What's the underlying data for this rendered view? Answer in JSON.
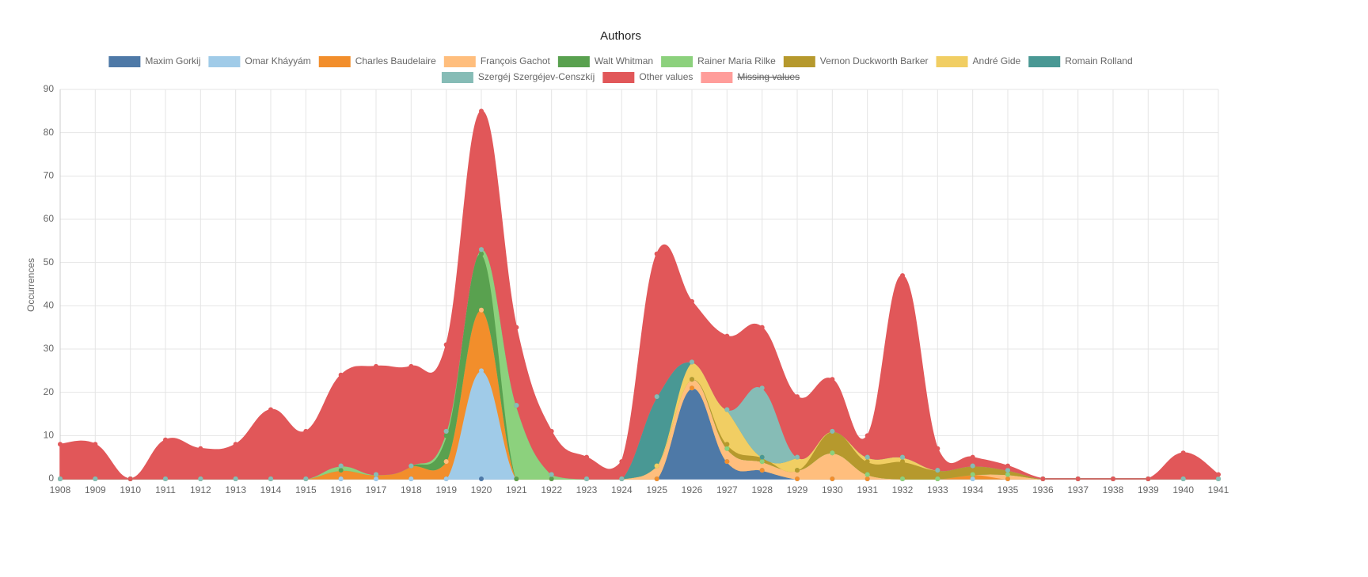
{
  "chart_data": {
    "type": "stacked-area",
    "title": "Authors",
    "y_label": "Occurrences",
    "categories": [
      "1908",
      "1909",
      "1910",
      "1911",
      "1912",
      "1913",
      "1914",
      "1915",
      "1916",
      "1917",
      "1918",
      "1919",
      "1920",
      "1921",
      "1922",
      "1923",
      "1924",
      "1925",
      "1926",
      "1927",
      "1928",
      "1929",
      "1930",
      "1931",
      "1932",
      "1933",
      "1934",
      "1935",
      "1936",
      "1937",
      "1938",
      "1939",
      "1940",
      "1941"
    ],
    "ylim": [
      0,
      90
    ],
    "yticks": [
      0,
      10,
      20,
      30,
      40,
      50,
      60,
      70,
      80,
      90
    ],
    "grid": true,
    "legend": "top",
    "series": [
      {
        "name": "Maxim Gorkij",
        "color": "#4e79a7",
        "values": [
          0,
          0,
          0,
          0,
          0,
          0,
          0,
          0,
          0,
          0,
          0,
          0,
          0,
          0,
          0,
          0,
          0,
          0,
          21,
          4,
          2,
          0,
          0,
          0,
          0,
          0,
          0,
          0,
          0,
          0,
          0,
          0,
          0,
          0
        ]
      },
      {
        "name": "Omar Kháyyám",
        "color": "#a0cbe8",
        "values": [
          0,
          0,
          0,
          0,
          0,
          0,
          0,
          0,
          0,
          0,
          0,
          0,
          25,
          0,
          0,
          0,
          0,
          0,
          0,
          0,
          0,
          0,
          0,
          0,
          0,
          0,
          0,
          0,
          0,
          0,
          0,
          0,
          0,
          0
        ]
      },
      {
        "name": "Charles Baudelaire",
        "color": "#f28e2b",
        "values": [
          0,
          0,
          0,
          0,
          0,
          0,
          0,
          0,
          2,
          1,
          3,
          4,
          14,
          0,
          0,
          0,
          0,
          0,
          0,
          0,
          0,
          0,
          0,
          0,
          0,
          0,
          1,
          0,
          0,
          0,
          0,
          0,
          0,
          0
        ]
      },
      {
        "name": "François Gachot",
        "color": "#ffbe7d",
        "values": [
          0,
          0,
          0,
          0,
          0,
          0,
          0,
          0,
          0,
          0,
          0,
          0,
          0,
          0,
          0,
          0,
          0,
          3,
          2,
          3,
          2,
          2,
          6,
          1,
          0,
          0,
          0,
          1,
          0,
          0,
          0,
          0,
          0,
          0
        ]
      },
      {
        "name": "Walt Whitman",
        "color": "#59a14f",
        "values": [
          0,
          0,
          0,
          0,
          0,
          0,
          0,
          0,
          0,
          0,
          0,
          6,
          13,
          0,
          0,
          0,
          0,
          0,
          0,
          0,
          0,
          0,
          0,
          0,
          0,
          0,
          0,
          0,
          0,
          0,
          0,
          0,
          0,
          0
        ]
      },
      {
        "name": "Rainer Maria Rilke",
        "color": "#8cd17d",
        "values": [
          0,
          0,
          0,
          0,
          0,
          0,
          0,
          0,
          1,
          0,
          0,
          1,
          1,
          17,
          1,
          0,
          0,
          0,
          0,
          0,
          0,
          0,
          0,
          0,
          0,
          0,
          0,
          0,
          0,
          0,
          0,
          0,
          0,
          0
        ]
      },
      {
        "name": "Vernon Duckworth Barker",
        "color": "#b6992d",
        "values": [
          0,
          0,
          0,
          0,
          0,
          0,
          0,
          0,
          0,
          0,
          0,
          0,
          0,
          0,
          0,
          0,
          0,
          0,
          0,
          1,
          1,
          0,
          5,
          3,
          4,
          2,
          2,
          1,
          0,
          0,
          0,
          0,
          0,
          0
        ]
      },
      {
        "name": "André Gide",
        "color": "#f1ce63",
        "values": [
          0,
          0,
          0,
          0,
          0,
          0,
          0,
          0,
          0,
          0,
          0,
          0,
          0,
          0,
          0,
          0,
          0,
          0,
          4,
          8,
          0,
          3,
          0,
          1,
          1,
          0,
          0,
          0,
          0,
          0,
          0,
          0,
          0,
          0
        ]
      },
      {
        "name": "Romain Rolland",
        "color": "#499894",
        "values": [
          0,
          0,
          0,
          0,
          0,
          0,
          0,
          0,
          0,
          0,
          0,
          0,
          0,
          0,
          0,
          0,
          0,
          16,
          0,
          0,
          0,
          0,
          0,
          0,
          0,
          0,
          0,
          0,
          0,
          0,
          0,
          0,
          0,
          0
        ]
      },
      {
        "name": "Szergéj Szergéjev-Censzkíj",
        "color": "#86bcb6",
        "values": [
          0,
          0,
          0,
          0,
          0,
          0,
          0,
          0,
          0,
          0,
          0,
          0,
          0,
          0,
          0,
          0,
          0,
          0,
          0,
          0,
          16,
          0,
          0,
          0,
          0,
          0,
          0,
          0,
          0,
          0,
          0,
          0,
          0,
          0
        ]
      },
      {
        "name": "Other values",
        "color": "#e15759",
        "values": [
          8,
          8,
          0,
          9,
          7,
          8,
          16,
          11,
          21,
          25,
          23,
          20,
          32,
          18,
          10,
          5,
          4,
          33,
          14,
          17,
          14,
          14,
          12,
          5,
          42,
          5,
          2,
          1,
          0,
          0,
          0,
          0,
          6,
          1
        ]
      },
      {
        "name": "Missing values",
        "color": "#ff9d9a",
        "hidden": true,
        "values": [
          null,
          null,
          null,
          null,
          null,
          null,
          null,
          null,
          null,
          null,
          null,
          null,
          null,
          null,
          null,
          null,
          null,
          null,
          null,
          null,
          null,
          null,
          null,
          null,
          null,
          null,
          null,
          null,
          null,
          null,
          null,
          null,
          null,
          null
        ]
      }
    ]
  }
}
